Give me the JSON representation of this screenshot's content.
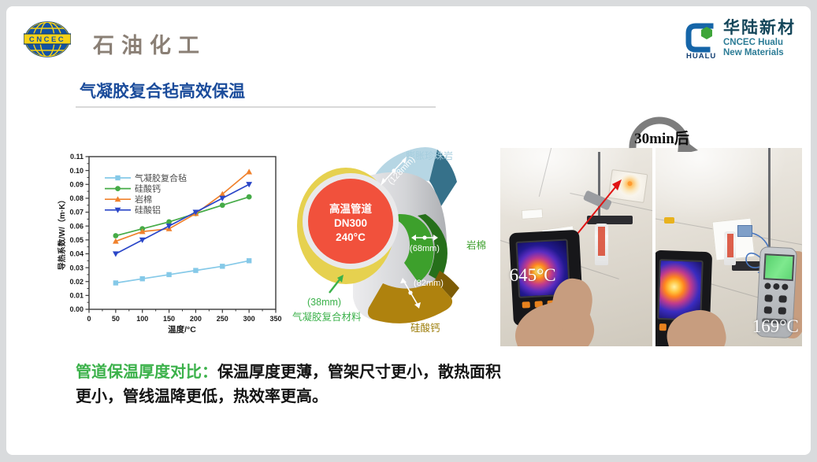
{
  "page": {
    "bg": "#d9dbdd",
    "card_bg": "#ffffff"
  },
  "header": {
    "cncec": {
      "logo_text": "CNCEC",
      "brand": "石油化工"
    },
    "hualu": {
      "logo_text": "HUALU",
      "name_cn": "华陆新材",
      "name_en_line1": "CNCEC Hualu",
      "name_en_line2": "New Materials"
    }
  },
  "title": {
    "text": "气凝胶复合毡高效保温",
    "color": "#1b4c9b"
  },
  "chart_data": {
    "type": "line",
    "title": "",
    "xlabel": "温度/°C",
    "ylabel": "导热系数/W/（m·K）",
    "xlim": [
      0,
      350
    ],
    "ylim": [
      0,
      0.11
    ],
    "xticks": [
      0,
      50,
      100,
      150,
      200,
      250,
      300,
      350
    ],
    "yticks": [
      0.0,
      0.01,
      0.02,
      0.03,
      0.04,
      0.05,
      0.06,
      0.07,
      0.08,
      0.09,
      0.1,
      0.11
    ],
    "x": [
      50,
      100,
      150,
      200,
      250,
      300
    ],
    "series": [
      {
        "name": "气凝胶复合毡",
        "color": "#85c9e8",
        "marker": "square",
        "values": [
          0.019,
          0.022,
          0.025,
          0.028,
          0.031,
          0.035
        ]
      },
      {
        "name": "硅酸钙",
        "color": "#45ab47",
        "marker": "circle",
        "values": [
          0.053,
          0.058,
          0.063,
          0.069,
          0.075,
          0.081
        ]
      },
      {
        "name": "岩棉",
        "color": "#f0812c",
        "marker": "triangle-up",
        "values": [
          0.049,
          0.056,
          0.058,
          0.069,
          0.083,
          0.099
        ]
      },
      {
        "name": "硅酸铝",
        "color": "#2a46c8",
        "marker": "triangle-down",
        "values": [
          0.04,
          0.05,
          0.06,
          0.07,
          0.08,
          0.09
        ]
      }
    ],
    "legend_position": "upper-left",
    "grid": false
  },
  "diagram": {
    "pipe": {
      "line1": "高温管道",
      "line2": "DN300",
      "line3": "240°C",
      "color": "#f1513c"
    },
    "layers": [
      {
        "name": "膨胀珍珠岩",
        "thickness": "(128mm)",
        "color": "#b6d6e4",
        "label_color": "#a6cede"
      },
      {
        "name": "岩棉",
        "thickness": "(68mm)",
        "color": "#3da02c",
        "label_color": "#3da02c"
      },
      {
        "name": "硅酸钙",
        "thickness": "(82mm)",
        "color": "#af820e",
        "label_color": "#9c7c08"
      },
      {
        "name": "气凝胶复合材料",
        "thickness": "(38mm)",
        "color": "#e6d14f",
        "label_color": "#3bb14a"
      }
    ]
  },
  "experiment": {
    "transition_label": "30min后",
    "left_photo_temp": "645°C",
    "right_photo_temp": "169°C"
  },
  "footer": {
    "lead": "管道保温厚度对比：",
    "lead_color": "#3bb14a",
    "body": "保温厚度更薄，管架尺寸更小，散热面积更小，管线温降更低，热效率更高。"
  }
}
